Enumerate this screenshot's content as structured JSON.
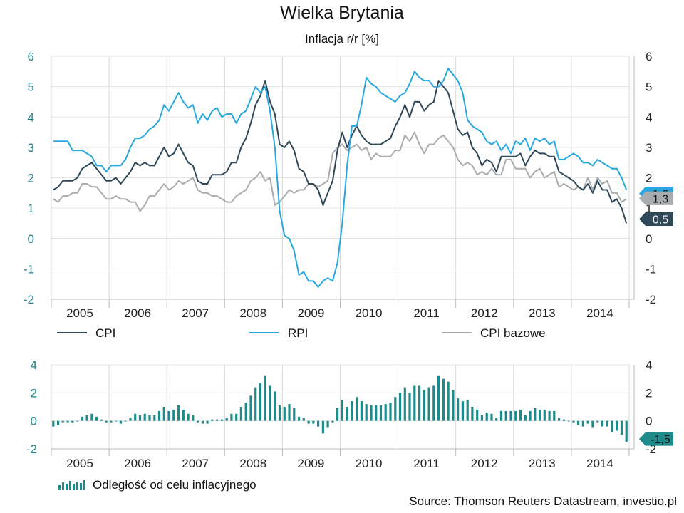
{
  "title": "Wielka Brytania",
  "subtitle": "Inflacja r/r [%]",
  "source": "Source: Thomson Reuters Datastream, investio.pl",
  "chart_data": [
    {
      "type": "line",
      "ylim": [
        -2,
        6
      ],
      "y_ticks": [
        -2,
        -1,
        0,
        1,
        2,
        3,
        4,
        5,
        6
      ],
      "x_labels": [
        "2005",
        "2006",
        "2007",
        "2008",
        "2009",
        "2010",
        "2011",
        "2012",
        "2013",
        "2014"
      ],
      "x_start": "2004-07",
      "grid": true,
      "legend_position": "bottom",
      "series": [
        {
          "name": "CPI",
          "color": "#2f4858",
          "end_label": "0,5",
          "values": [
            1.6,
            1.7,
            1.9,
            1.9,
            1.9,
            2.0,
            2.3,
            2.4,
            2.5,
            2.3,
            2.1,
            1.9,
            1.9,
            2.0,
            1.8,
            2.0,
            2.2,
            2.5,
            2.4,
            2.5,
            2.4,
            2.4,
            2.7,
            3.0,
            2.7,
            2.8,
            3.1,
            2.8,
            2.5,
            2.4,
            1.9,
            1.8,
            1.8,
            2.1,
            2.1,
            2.1,
            2.2,
            2.5,
            2.5,
            3.0,
            3.3,
            3.8,
            4.4,
            4.7,
            5.2,
            4.5,
            4.1,
            3.1,
            3.0,
            3.2,
            2.9,
            2.3,
            2.2,
            1.8,
            1.8,
            1.6,
            1.1,
            1.5,
            1.9,
            2.9,
            3.5,
            3.0,
            3.4,
            3.7,
            3.4,
            3.2,
            3.1,
            3.1,
            3.1,
            3.2,
            3.3,
            3.7,
            4.0,
            4.4,
            4.0,
            4.5,
            4.5,
            4.2,
            4.4,
            4.5,
            5.2,
            5.0,
            4.8,
            4.2,
            3.6,
            3.4,
            3.5,
            3.0,
            2.8,
            2.4,
            2.6,
            2.5,
            2.2,
            2.7,
            2.7,
            2.7,
            2.7,
            2.8,
            2.4,
            2.7,
            2.9,
            2.8,
            2.8,
            2.7,
            2.7,
            2.2,
            2.1,
            2.0,
            1.9,
            1.7,
            1.6,
            1.8,
            1.5,
            1.9,
            1.6,
            1.6,
            1.2,
            1.3,
            1.0,
            0.5
          ]
        },
        {
          "name": "RPI",
          "color": "#29a8e0",
          "end_label": "1,6",
          "values": [
            3.2,
            3.2,
            3.2,
            3.2,
            2.9,
            2.9,
            2.9,
            2.8,
            2.7,
            2.4,
            2.4,
            2.2,
            2.4,
            2.4,
            2.4,
            2.6,
            3.0,
            3.3,
            3.3,
            3.4,
            3.6,
            3.7,
            3.9,
            4.4,
            4.2,
            4.5,
            4.8,
            4.5,
            4.3,
            4.4,
            3.8,
            4.1,
            3.9,
            4.2,
            4.3,
            4.0,
            4.1,
            4.1,
            3.8,
            4.1,
            4.2,
            4.6,
            5.0,
            4.8,
            5.0,
            4.2,
            3.0,
            0.9,
            0.1,
            0.0,
            -0.4,
            -1.2,
            -1.1,
            -1.4,
            -1.4,
            -1.6,
            -1.4,
            -1.3,
            -1.4,
            -0.8,
            0.5,
            2.4,
            3.7,
            3.7,
            4.4,
            5.3,
            5.1,
            5.0,
            4.8,
            4.7,
            4.6,
            4.5,
            4.7,
            4.8,
            5.1,
            5.5,
            5.3,
            5.2,
            5.2,
            5.0,
            5.0,
            5.2,
            5.6,
            5.4,
            5.2,
            4.8,
            3.9,
            3.7,
            3.6,
            3.5,
            3.2,
            3.1,
            3.2,
            2.9,
            3.1,
            2.8,
            3.2,
            3.1,
            3.3,
            2.9,
            3.3,
            3.2,
            3.3,
            3.1,
            3.2,
            2.6,
            2.6,
            2.7,
            2.8,
            2.7,
            2.5,
            2.5,
            2.4,
            2.6,
            2.5,
            2.4,
            2.3,
            2.3,
            2.0,
            1.6
          ]
        },
        {
          "name": "CPI bazowe",
          "color": "#a8acaf",
          "end_label": "1,3",
          "values": [
            1.3,
            1.2,
            1.4,
            1.4,
            1.5,
            1.5,
            1.8,
            1.8,
            1.7,
            1.7,
            1.5,
            1.3,
            1.3,
            1.4,
            1.3,
            1.3,
            1.2,
            1.2,
            0.9,
            1.1,
            1.4,
            1.4,
            1.6,
            1.8,
            1.6,
            1.7,
            1.9,
            1.8,
            1.9,
            2.0,
            1.6,
            1.5,
            1.5,
            1.4,
            1.4,
            1.3,
            1.2,
            1.2,
            1.4,
            1.5,
            1.6,
            1.9,
            2.0,
            2.2,
            1.9,
            2.0,
            1.1,
            1.2,
            1.4,
            1.6,
            1.5,
            1.6,
            1.6,
            1.8,
            1.8,
            1.7,
            1.8,
            1.9,
            2.8,
            3.0,
            3.1,
            2.9,
            3.0,
            3.1,
            2.9,
            3.0,
            2.6,
            2.8,
            2.7,
            2.7,
            2.7,
            2.9,
            2.9,
            3.4,
            3.2,
            3.5,
            3.1,
            2.8,
            3.1,
            3.1,
            3.3,
            3.4,
            3.2,
            3.0,
            2.6,
            2.4,
            2.5,
            2.4,
            2.1,
            2.2,
            2.1,
            2.3,
            2.1,
            2.1,
            2.6,
            2.6,
            2.3,
            2.3,
            2.3,
            2.0,
            2.2,
            2.3,
            2.0,
            2.1,
            2.2,
            1.7,
            1.8,
            1.7,
            1.6,
            1.7,
            1.6,
            2.0,
            1.6,
            2.0,
            1.8,
            1.9,
            1.5,
            1.5,
            1.2,
            1.3
          ]
        }
      ],
      "legend": [
        "CPI",
        "RPI",
        "CPI bazowe"
      ]
    },
    {
      "type": "bar",
      "ylim": [
        -2,
        4
      ],
      "y_ticks": [
        -2,
        0,
        2,
        4
      ],
      "x_labels": [
        "2005",
        "2006",
        "2007",
        "2008",
        "2009",
        "2010",
        "2011",
        "2012",
        "2013",
        "2014"
      ],
      "x_start": "2004-07",
      "grid": true,
      "color": "#1e8a8a",
      "series_name": "Odległość od celu inflacyjnego",
      "end_label": "-1,5",
      "values": [
        -0.4,
        -0.3,
        -0.1,
        -0.1,
        -0.1,
        0.0,
        0.3,
        0.4,
        0.5,
        0.3,
        0.1,
        -0.1,
        -0.1,
        0.0,
        -0.2,
        0.0,
        0.2,
        0.5,
        0.4,
        0.5,
        0.4,
        0.4,
        0.7,
        1.0,
        0.7,
        0.8,
        1.1,
        0.8,
        0.5,
        0.4,
        -0.1,
        -0.2,
        -0.2,
        0.1,
        0.1,
        0.1,
        0.2,
        0.5,
        0.5,
        1.0,
        1.3,
        1.8,
        2.4,
        2.7,
        3.2,
        2.5,
        2.1,
        1.1,
        1.0,
        1.2,
        0.9,
        0.3,
        0.2,
        -0.2,
        -0.2,
        -0.4,
        -0.9,
        -0.5,
        -0.1,
        0.9,
        1.5,
        1.0,
        1.4,
        1.7,
        1.4,
        1.2,
        1.1,
        1.1,
        1.1,
        1.2,
        1.3,
        1.7,
        2.0,
        2.4,
        2.0,
        2.5,
        2.5,
        2.2,
        2.4,
        2.5,
        3.2,
        3.0,
        2.8,
        2.2,
        1.6,
        1.4,
        1.5,
        1.0,
        0.8,
        0.4,
        0.6,
        0.5,
        0.2,
        0.7,
        0.7,
        0.7,
        0.7,
        0.8,
        0.4,
        0.7,
        0.9,
        0.8,
        0.8,
        0.7,
        0.7,
        0.2,
        0.1,
        0.0,
        -0.1,
        -0.3,
        -0.4,
        -0.2,
        -0.5,
        -0.1,
        -0.4,
        -0.4,
        -0.8,
        -0.7,
        -1.0,
        -1.5
      ]
    }
  ]
}
